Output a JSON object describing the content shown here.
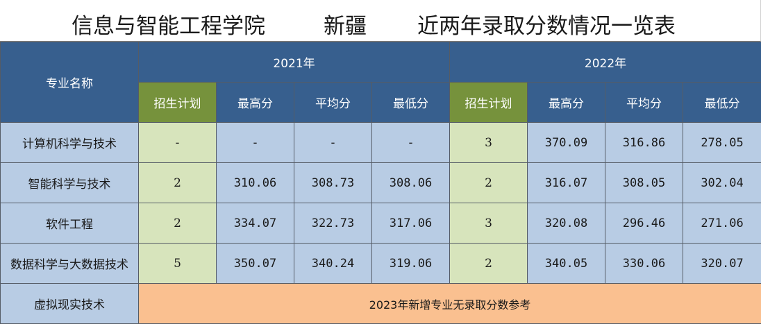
{
  "title": {
    "school": "信息与智能工程学院",
    "region": "新疆",
    "description": "近两年录取分数情况一览表"
  },
  "header": {
    "major_name": "专业名称",
    "years": [
      {
        "label": "2021年",
        "columns": [
          "招生计划",
          "最高分",
          "平均分",
          "最低分"
        ]
      },
      {
        "label": "2022年",
        "columns": [
          "招生计划",
          "最高分",
          "平均分",
          "最低分"
        ]
      }
    ]
  },
  "rows": [
    {
      "name": "计算机科学与技术",
      "y2021": {
        "plan": "-",
        "max": "-",
        "avg": "-",
        "min": "-"
      },
      "y2022": {
        "plan": "3",
        "max": "370.09",
        "avg": "316.86",
        "min": "278.05"
      }
    },
    {
      "name": "智能科学与技术",
      "y2021": {
        "plan": "2",
        "max": "310.06",
        "avg": "308.73",
        "min": "308.06"
      },
      "y2022": {
        "plan": "2",
        "max": "316.07",
        "avg": "308.05",
        "min": "302.04"
      }
    },
    {
      "name": "软件工程",
      "y2021": {
        "plan": "2",
        "max": "334.07",
        "avg": "322.73",
        "min": "317.06"
      },
      "y2022": {
        "plan": "3",
        "max": "320.08",
        "avg": "296.46",
        "min": "271.06"
      }
    },
    {
      "name": "数据科学与大数据技术",
      "y2021": {
        "plan": "5",
        "max": "350.07",
        "avg": "340.24",
        "min": "319.06"
      },
      "y2022": {
        "plan": "2",
        "max": "340.05",
        "avg": "330.06",
        "min": "320.07"
      }
    }
  ],
  "new_major": {
    "name": "虚拟现实技术",
    "note": "2023年新增专业无录取分数参考"
  },
  "colors": {
    "header_blue": "#375f8e",
    "header_green": "#76923c",
    "cell_blue": "#b8cce4",
    "cell_green": "#d7e4bc",
    "note_orange": "#fac090"
  }
}
